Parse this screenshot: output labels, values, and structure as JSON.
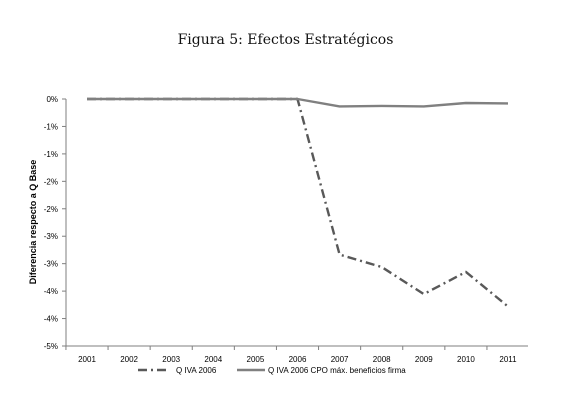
{
  "figure": {
    "title": "Figura 5: Efectos Estratégicos"
  },
  "chart_data": {
    "type": "line",
    "title": "Figura 5: Efectos Estratégicos",
    "xlabel": "",
    "ylabel": "Diferencia respecto a Q Base",
    "categories": [
      "2001",
      "2002",
      "2003",
      "2004",
      "2005",
      "2006",
      "2007",
      "2008",
      "2009",
      "2010",
      "2011"
    ],
    "ylim": [
      -5,
      0
    ],
    "y_tick_labels": [
      "0%",
      "-1%",
      "-1%",
      "-2%",
      "-2%",
      "-3%",
      "-3%",
      "-4%",
      "-4%",
      "-5%"
    ],
    "grid": false,
    "legend": "bottom",
    "series": [
      {
        "name": "Q IVA 2006",
        "style": "dash-dot",
        "color": "#595959",
        "values": [
          0,
          0,
          0,
          0,
          0,
          0,
          -3.15,
          -3.4,
          -3.95,
          -3.5,
          -4.2
        ]
      },
      {
        "name": "Q IVA 2006 CPO máx. beneficios firma",
        "style": "solid",
        "color": "#808080",
        "values": [
          0,
          0,
          0,
          0,
          0,
          0,
          -0.15,
          -0.14,
          -0.15,
          -0.08,
          -0.09
        ]
      }
    ]
  }
}
